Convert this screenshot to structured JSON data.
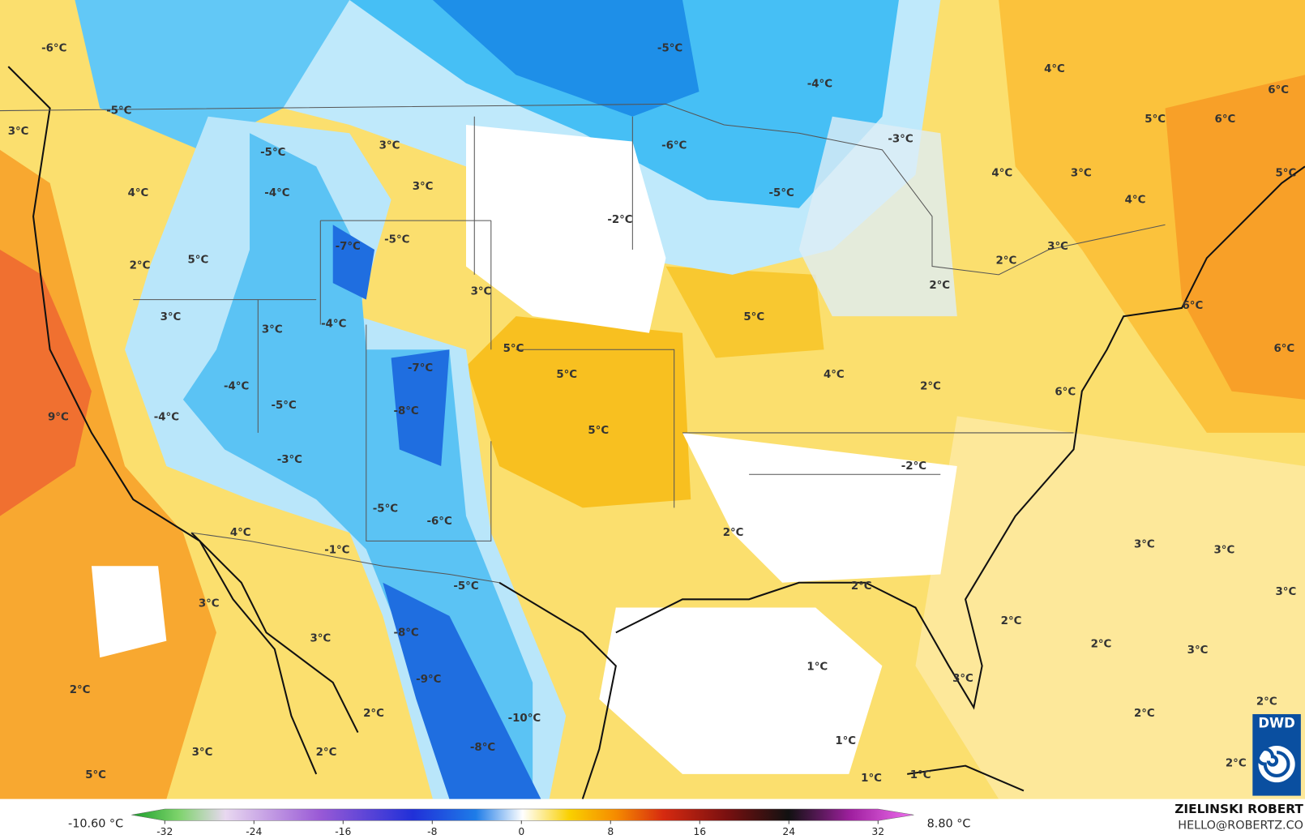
{
  "map": {
    "labels": [
      "-6°C",
      "-5°C",
      "3°C",
      "-5°C",
      "3°C",
      "3°C",
      "-4°C",
      "4°C",
      "-7°C",
      "-5°C",
      "2°C",
      "5°C",
      "3°C",
      "3°C",
      "3°C",
      "-4°C",
      "5°C",
      "5°C",
      "-7°C",
      "-4°C",
      "-5°C",
      "-8°C",
      "9°C",
      "-4°C",
      "5°C",
      "-3°C",
      "-5°C",
      "-6°C",
      "-1°C",
      "4°C",
      "-5°C",
      "3°C",
      "-8°C",
      "3°C",
      "-9°C",
      "2°C",
      "2°C",
      "-10°C",
      "3°C",
      "2°C",
      "-8°C",
      "5°C",
      "-5°C",
      "-4°C",
      "-3°C",
      "-6°C",
      "-5°C",
      "-2°C",
      "5°C",
      "4°C",
      "2°C",
      "-2°C",
      "2°C",
      "2°C",
      "1°C",
      "1°C",
      "1°C",
      "1°C",
      "3°C",
      "2°C",
      "2°C",
      "3°C",
      "3°C",
      "3°C",
      "3°C",
      "2°C",
      "2°C",
      "2°C",
      "4°C",
      "6°C",
      "6°C",
      "5°C",
      "5°C",
      "4°C",
      "3°C",
      "4°C",
      "3°C",
      "2°C",
      "2°C",
      "6°C",
      "6°C",
      "6°C"
    ]
  },
  "colorbar": {
    "min_label": "-10.60 °C",
    "max_label": "8.80 °C",
    "ticks": [
      -32,
      -24,
      -16,
      -8,
      0,
      8,
      16,
      24,
      32
    ]
  },
  "credits": {
    "author": "ZIELINSKI ROBERT",
    "email": "HELLO@ROBERTZ.CO",
    "logo": "DWD"
  }
}
